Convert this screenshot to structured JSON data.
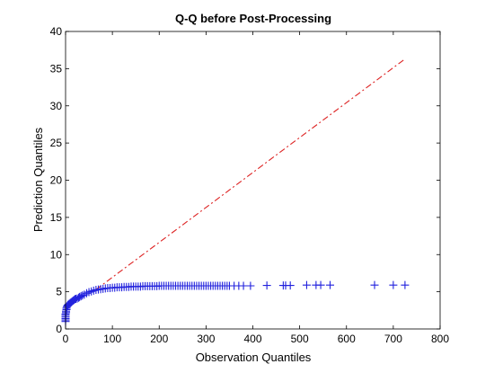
{
  "chart_data": {
    "type": "scatter",
    "title": "Q-Q before Post-Processing",
    "xlabel": "Observation Quantiles",
    "ylabel": "Prediction Quantiles",
    "xlim": [
      0,
      800
    ],
    "ylim": [
      0,
      40
    ],
    "x_ticks": [
      0,
      100,
      200,
      300,
      400,
      500,
      600,
      700,
      800
    ],
    "y_ticks": [
      0,
      5,
      10,
      15,
      20,
      25,
      30,
      35,
      40
    ],
    "grid": false,
    "colors": {
      "series": "#2222dd",
      "reference": "#dd2222"
    },
    "series": [
      {
        "marker": "plus",
        "x": [
          0,
          0,
          0,
          0,
          0,
          0,
          1,
          1,
          2,
          2,
          3,
          4,
          5,
          6,
          8,
          10,
          12,
          14,
          16,
          18,
          20,
          22,
          25,
          28,
          30,
          33,
          36,
          40,
          45,
          50,
          55,
          60,
          65,
          70,
          75,
          80,
          85,
          90,
          95,
          100,
          105,
          110,
          115,
          120,
          125,
          130,
          135,
          140,
          145,
          150,
          155,
          160,
          165,
          170,
          175,
          180,
          185,
          190,
          195,
          200,
          205,
          210,
          215,
          220,
          225,
          230,
          235,
          240,
          245,
          250,
          255,
          260,
          265,
          270,
          275,
          280,
          285,
          290,
          295,
          300,
          305,
          310,
          315,
          320,
          325,
          330,
          335,
          340,
          345,
          350,
          360,
          370,
          380,
          395,
          430,
          465,
          470,
          480,
          515,
          535,
          545,
          565,
          660,
          700,
          725
        ],
        "y": [
          1.0,
          1.2,
          1.4,
          1.6,
          1.8,
          2.0,
          2.2,
          2.4,
          2.6,
          2.8,
          3.0,
          3.1,
          3.2,
          3.3,
          3.4,
          3.5,
          3.6,
          3.7,
          3.8,
          3.9,
          4.0,
          4.05,
          4.1,
          4.2,
          4.3,
          4.4,
          4.5,
          4.6,
          4.8,
          4.95,
          5.05,
          5.15,
          5.25,
          5.3,
          5.35,
          5.4,
          5.45,
          5.5,
          5.5,
          5.55,
          5.55,
          5.6,
          5.6,
          5.6,
          5.65,
          5.65,
          5.65,
          5.7,
          5.7,
          5.7,
          5.7,
          5.7,
          5.75,
          5.75,
          5.75,
          5.75,
          5.75,
          5.75,
          5.75,
          5.8,
          5.8,
          5.8,
          5.8,
          5.8,
          5.8,
          5.8,
          5.8,
          5.8,
          5.8,
          5.8,
          5.8,
          5.8,
          5.8,
          5.8,
          5.8,
          5.8,
          5.8,
          5.8,
          5.8,
          5.8,
          5.8,
          5.8,
          5.8,
          5.8,
          5.8,
          5.8,
          5.8,
          5.8,
          5.8,
          5.8,
          5.8,
          5.8,
          5.8,
          5.8,
          5.85,
          5.85,
          5.85,
          5.85,
          5.9,
          5.9,
          5.9,
          5.9,
          5.9,
          5.9,
          5.9
        ]
      }
    ],
    "reference_line": {
      "style": "dash-dot",
      "x": [
        65,
        725
      ],
      "y": [
        5.3,
        36.3
      ]
    }
  }
}
